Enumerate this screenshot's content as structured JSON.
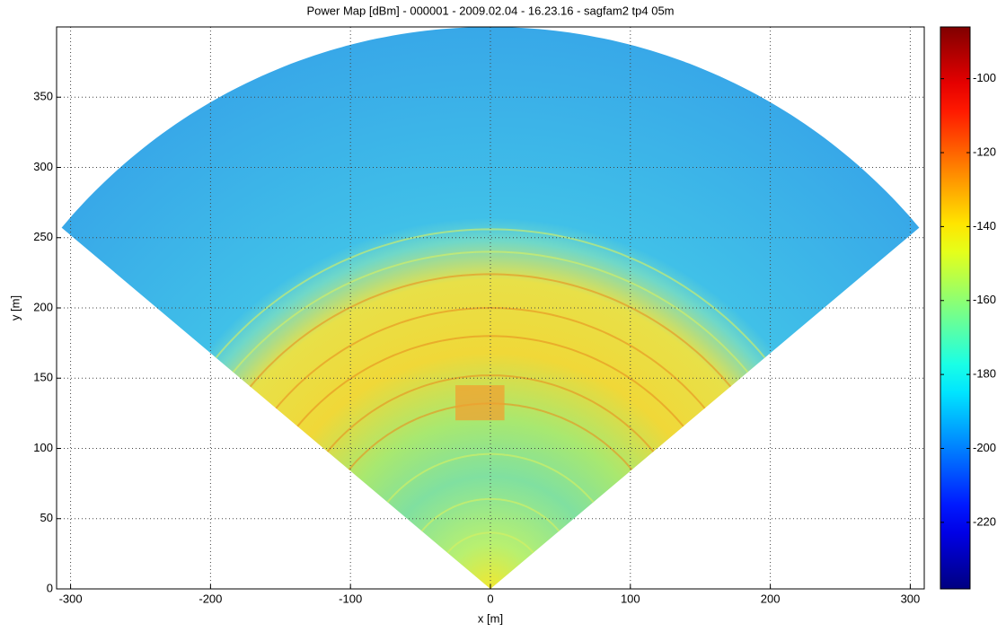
{
  "chart_data": {
    "type": "sector-heatmap",
    "title": "Power Map [dBm] - 000001 - 2009.02.04 - 16.23.16 - sagfam2 tp4 05m",
    "xlabel": "x [m]",
    "ylabel": "y [m]",
    "xlim": [
      -310,
      310
    ],
    "xticks": [
      -300,
      -200,
      -100,
      0,
      100,
      200,
      300
    ],
    "ylim": [
      0,
      400
    ],
    "yticks": [
      0,
      50,
      100,
      150,
      200,
      250,
      300,
      350
    ],
    "grid": true,
    "colormap": "jet",
    "colorbar": {
      "lim": [
        -238,
        -86
      ],
      "ticks": [
        -100,
        -120,
        -140,
        -160,
        -180,
        -200,
        -220
      ]
    }
  }
}
